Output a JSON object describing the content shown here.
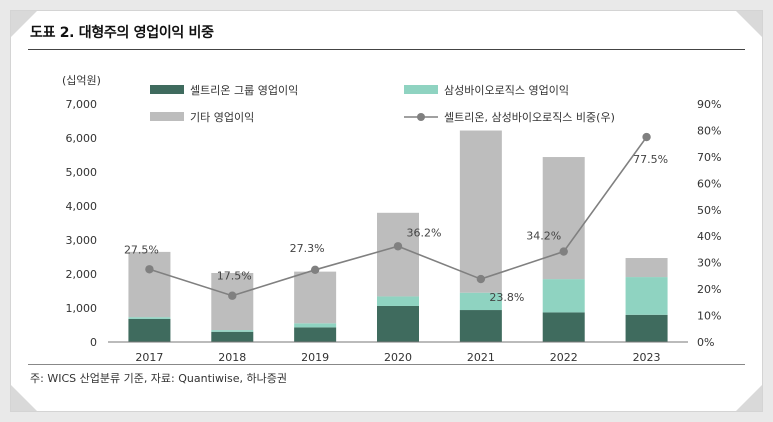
{
  "title": "도표 2. 대형주의 영업이익 비중",
  "source": "주: WICS 산업분류 기준, 자료: Quantiwise, 하나증권",
  "colors": {
    "celltrion": "#3f6b5e",
    "samsung": "#8fd3c1",
    "other": "#bdbdbd",
    "line": "#808080"
  },
  "chart_data": {
    "type": "bar",
    "stacked": true,
    "categories": [
      "2017",
      "2018",
      "2019",
      "2020",
      "2021",
      "2022",
      "2023"
    ],
    "series": [
      {
        "name": "셀트리온 그룹 영업이익",
        "type": "bar",
        "axis": "left",
        "values": [
          680,
          300,
          430,
          1060,
          940,
          870,
          800
        ]
      },
      {
        "name": "삼성바이오로직스 영업이익",
        "type": "bar",
        "axis": "left",
        "values": [
          50,
          50,
          120,
          280,
          510,
          980,
          1110
        ]
      },
      {
        "name": "기타 영업이익",
        "type": "bar",
        "axis": "left",
        "values": [
          1920,
          1680,
          1520,
          2460,
          4770,
          3590,
          560
        ]
      },
      {
        "name": "셀트리온, 삼성바이오로직스 비중(우)",
        "type": "line",
        "axis": "right",
        "values": [
          27.5,
          17.5,
          27.3,
          36.2,
          23.8,
          34.2,
          77.5
        ]
      }
    ],
    "point_labels": [
      "27.5%",
      "17.5%",
      "27.3%",
      "36.2%",
      "23.8%",
      "34.2%",
      "77.5%"
    ],
    "ylabel_left": "(십억원)",
    "ylim_left": [
      0,
      7000
    ],
    "yticks_left": [
      "0",
      "1,000",
      "2,000",
      "3,000",
      "4,000",
      "5,000",
      "6,000",
      "7,000"
    ],
    "ylim_right": [
      0,
      90
    ],
    "yticks_right": [
      "0%",
      "10%",
      "20%",
      "30%",
      "40%",
      "50%",
      "60%",
      "70%",
      "80%",
      "90%"
    ],
    "legend_position": "top",
    "grid": false
  }
}
